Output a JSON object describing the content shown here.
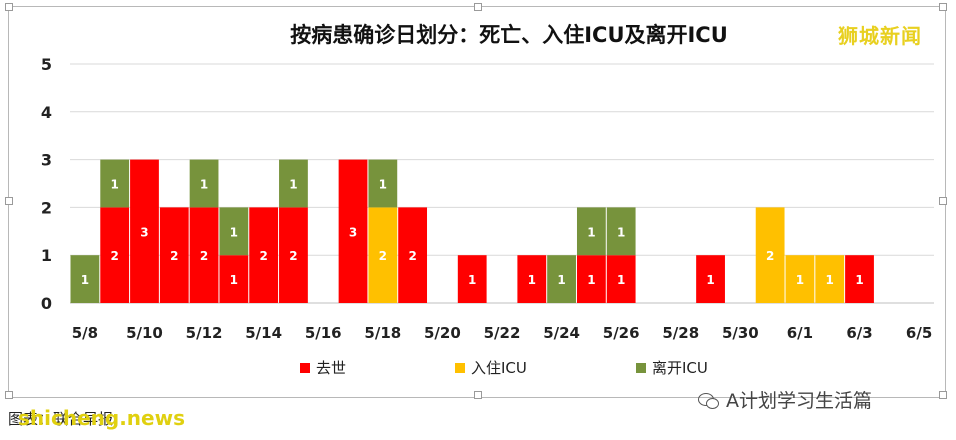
{
  "chart_data": {
    "type": "bar",
    "stacked": true,
    "title": "按病患确诊日划分：死亡、入住ICU及离开ICU",
    "categories": [
      "5/8",
      "5/9",
      "5/10",
      "5/11",
      "5/12",
      "5/13",
      "5/14",
      "5/15",
      "5/16",
      "5/17",
      "5/18",
      "5/19",
      "5/20",
      "5/21",
      "5/22",
      "5/23",
      "5/24",
      "5/25",
      "5/26",
      "5/27",
      "5/28",
      "5/29",
      "5/30",
      "5/31",
      "6/1",
      "6/2",
      "6/3",
      "6/4",
      "6/5"
    ],
    "tick_labels": [
      "5/8",
      "",
      "5/10",
      "",
      "5/12",
      "",
      "5/14",
      "",
      "5/16",
      "",
      "5/18",
      "",
      "5/20",
      "",
      "5/22",
      "",
      "5/24",
      "",
      "5/26",
      "",
      "5/28",
      "",
      "5/30",
      "",
      "6/1",
      "",
      "6/3",
      "",
      "6/5"
    ],
    "series": [
      {
        "name": "去世",
        "color": "#ff0000",
        "values": [
          0,
          2,
          3,
          2,
          2,
          1,
          2,
          2,
          0,
          3,
          0,
          2,
          0,
          1,
          0,
          1,
          0,
          1,
          1,
          0,
          0,
          1,
          0,
          0,
          0,
          0,
          1,
          0,
          0
        ]
      },
      {
        "name": "入住ICU",
        "color": "#ffc000",
        "values": [
          0,
          0,
          0,
          0,
          0,
          0,
          0,
          0,
          0,
          0,
          2,
          0,
          0,
          0,
          0,
          0,
          0,
          0,
          0,
          0,
          0,
          0,
          0,
          2,
          1,
          1,
          0,
          0,
          0
        ]
      },
      {
        "name": "离开ICU",
        "color": "#77933c",
        "values": [
          1,
          1,
          0,
          0,
          1,
          1,
          0,
          1,
          0,
          0,
          1,
          0,
          0,
          0,
          0,
          0,
          1,
          1,
          1,
          0,
          0,
          0,
          0,
          0,
          0,
          0,
          0,
          0,
          0
        ]
      }
    ],
    "ylim": [
      0,
      5
    ],
    "yticks": [
      0,
      1,
      2,
      3,
      4,
      5
    ],
    "grid": true,
    "legend_position": "bottom"
  },
  "watermark": "狮城新闻",
  "footer": {
    "source_text": "图表：联合早报",
    "brand_text": "shicheng.news",
    "account_text": "A计划学习生活篇"
  }
}
